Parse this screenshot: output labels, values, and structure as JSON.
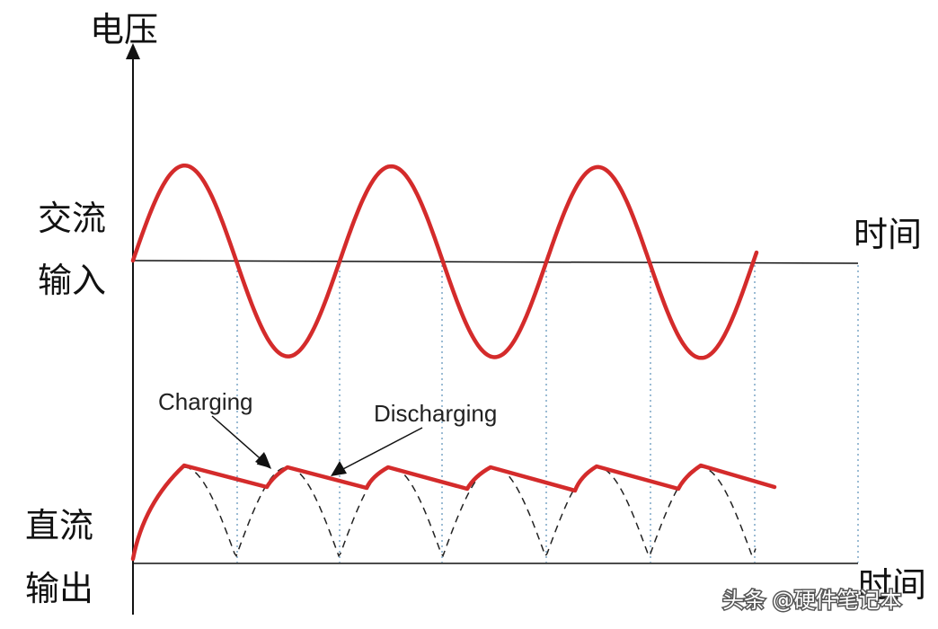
{
  "labels": {
    "y_axis": "电压",
    "ac_line1": "交流",
    "ac_line2": "输入",
    "dc_line1": "直流",
    "dc_line2": "输出",
    "time_top": "时间",
    "time_bottom": "时间",
    "charging": "Charging",
    "discharging": "Discharging"
  },
  "watermark": "头条 @硬件笔记本",
  "colors": {
    "wave": "#d42b2b",
    "axis": "#111111",
    "guide": "#5a8fb8",
    "rectified": "#222222"
  }
}
